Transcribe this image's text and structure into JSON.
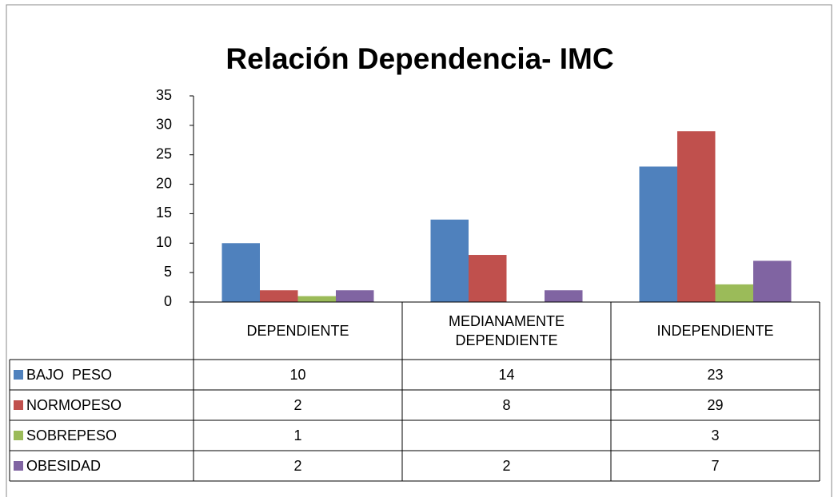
{
  "chart_data": {
    "type": "bar",
    "title": "Relación Dependencia- IMC",
    "categories": [
      "DEPENDIENTE",
      "MEDIANAMENTE DEPENDIENTE",
      "INDEPENDIENTE"
    ],
    "series": [
      {
        "name": "BAJO  PESO",
        "color": "#4f81bd",
        "values": [
          10,
          14,
          23
        ]
      },
      {
        "name": "NORMOPESO",
        "color": "#c0504d",
        "values": [
          2,
          8,
          29
        ]
      },
      {
        "name": "SOBREPESO",
        "color": "#9bbb59",
        "values": [
          1,
          null,
          3
        ]
      },
      {
        "name": "OBESIDAD",
        "color": "#8064a2",
        "values": [
          2,
          2,
          7
        ]
      }
    ],
    "ylim": [
      0,
      35
    ],
    "yticks": [
      0,
      5,
      10,
      15,
      20,
      25,
      30,
      35
    ],
    "grid": false,
    "data_table": true
  }
}
